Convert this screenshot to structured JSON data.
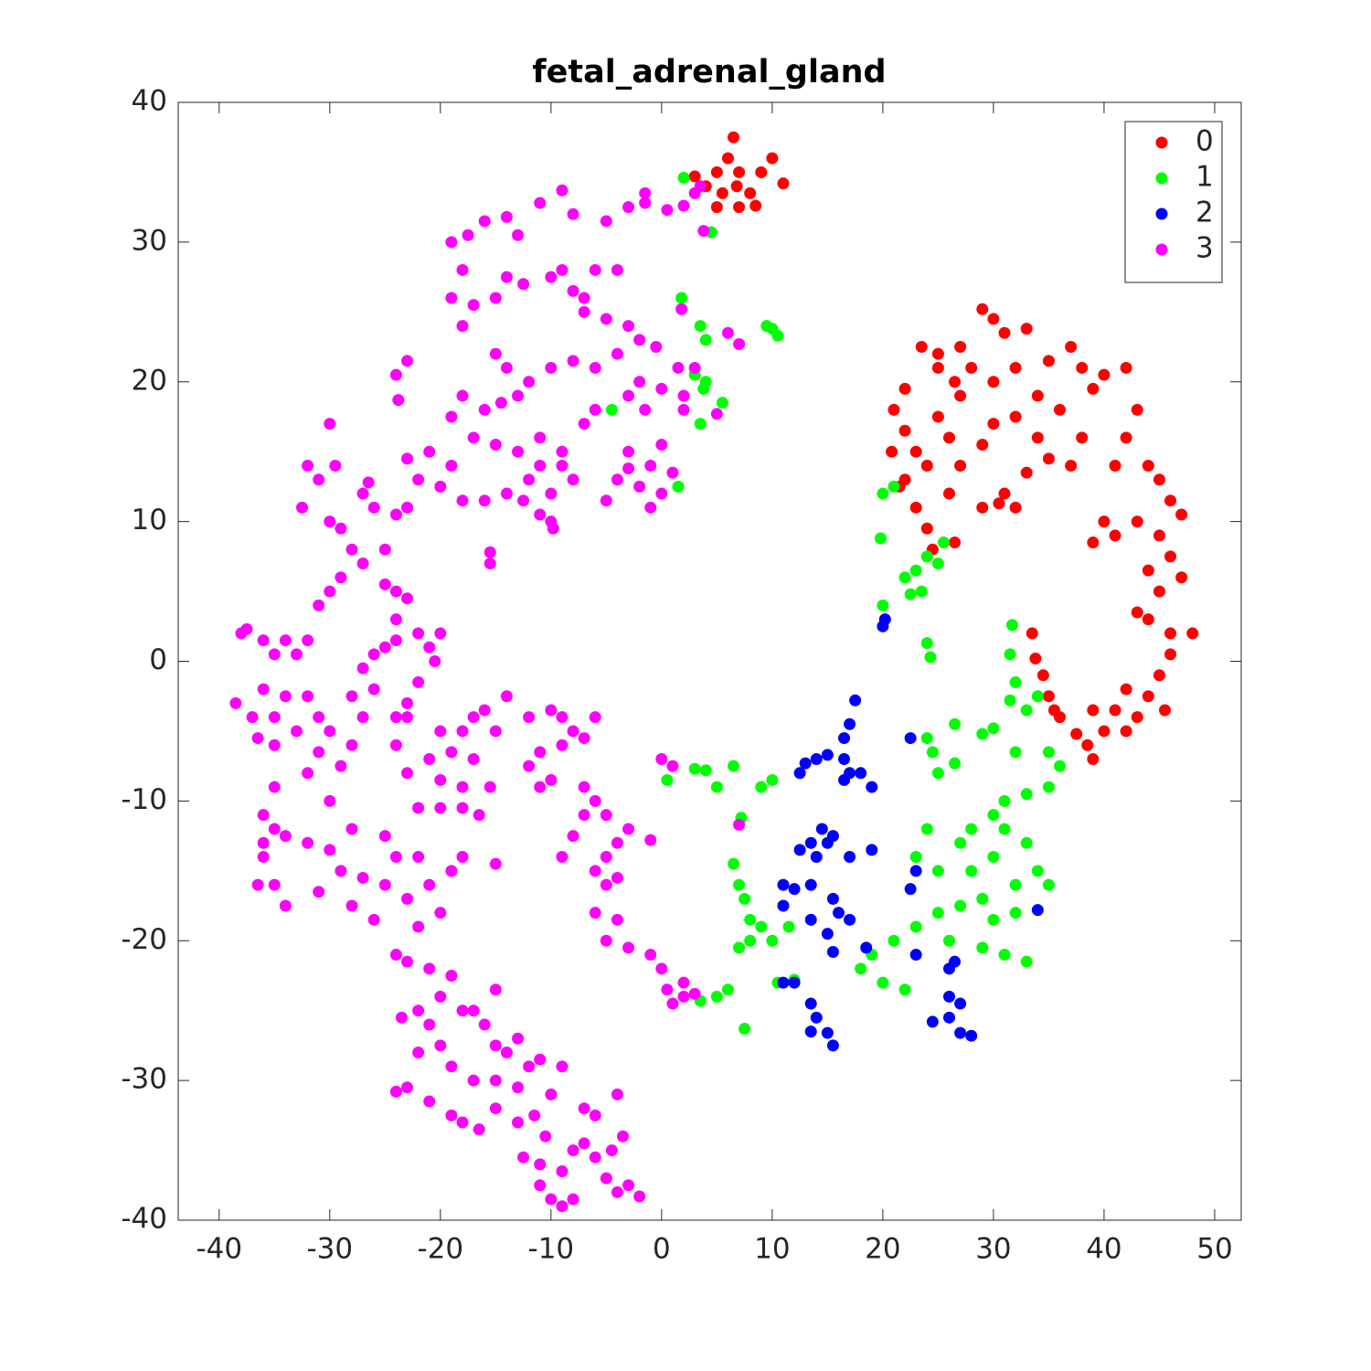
{
  "chart_data": {
    "type": "scatter",
    "title": "fetal_adrenal_gland",
    "xlim": [
      -43.7,
      52.4
    ],
    "ylim": [
      -40,
      40
    ],
    "xticks": [
      -40,
      -30,
      -20,
      -10,
      0,
      10,
      20,
      30,
      40,
      50
    ],
    "yticks": [
      -40,
      -30,
      -20,
      -10,
      0,
      10,
      20,
      30,
      40
    ],
    "legend": "upper right",
    "series": [
      {
        "name": "0",
        "color": "#ff0000",
        "x": [
          3,
          4,
          5,
          6,
          6.5,
          7,
          8,
          9,
          10,
          11,
          5,
          7,
          8.5,
          5.5,
          6.8,
          23.5,
          25,
          27,
          29,
          30,
          31,
          33,
          35,
          37,
          38,
          39,
          40,
          42,
          43,
          42,
          41,
          44,
          45,
          46,
          47,
          45,
          43,
          41,
          39,
          40,
          46,
          44,
          47,
          45,
          48,
          46,
          44,
          43,
          46,
          45,
          44,
          42,
          41,
          43,
          39,
          40,
          38.5,
          39,
          37.5,
          42,
          45.5,
          22,
          21,
          22,
          23,
          24,
          22,
          21.5,
          23,
          24,
          24.5,
          26.5,
          26,
          27,
          26,
          25,
          27,
          28,
          30,
          32,
          30,
          32,
          34,
          35,
          33,
          31,
          29,
          30.5,
          32,
          36,
          38,
          37,
          34,
          29,
          33.5,
          33.8,
          34.5,
          35,
          35.5,
          36,
          25,
          26.5,
          20.8
        ],
        "values": [
          34.7,
          34,
          35,
          36,
          37.5,
          35,
          33.5,
          35,
          36,
          34.2,
          32.5,
          32.5,
          32.6,
          33.5,
          34,
          22.5,
          22,
          22.5,
          25.2,
          24.5,
          23.5,
          23.8,
          21.5,
          22.5,
          21,
          19.5,
          20.5,
          21,
          18,
          16,
          14,
          14,
          13,
          11.5,
          10.5,
          9,
          10,
          9,
          8.5,
          10,
          7.5,
          6.5,
          6,
          5,
          2,
          2,
          3,
          3.5,
          0.5,
          -1,
          -2.5,
          -2,
          -3.5,
          -4,
          -3.5,
          -5,
          -6,
          -7,
          -5.2,
          -5,
          -3.5,
          19.5,
          18,
          16.5,
          15,
          14,
          13,
          12.5,
          11,
          9.5,
          8,
          8.5,
          12,
          14,
          16,
          17.5,
          19,
          21,
          20,
          21,
          17,
          17.5,
          16,
          14.5,
          13.5,
          12,
          11,
          11.3,
          11,
          18,
          16,
          14,
          19,
          15.5,
          2,
          0.2,
          -1,
          -2.5,
          -3.5,
          -4,
          21,
          20,
          15
        ]
      },
      {
        "name": "1",
        "color": "#00ff00",
        "x": [
          2,
          4.5,
          1.8,
          3.5,
          4,
          10,
          10.5,
          9.5,
          3,
          4,
          3.8,
          5.5,
          3.5,
          -4.5,
          1.5,
          20,
          21,
          19.8,
          22,
          23,
          24,
          25,
          25.5,
          23.5,
          22.5,
          20,
          24,
          24.3,
          31.7,
          31.5,
          32,
          33,
          34,
          31.5,
          29,
          30,
          26.5,
          24,
          24.5,
          25,
          26.5,
          32,
          35,
          36,
          35,
          33,
          31,
          30,
          28,
          27,
          24,
          23,
          25,
          28,
          30,
          31,
          33,
          34,
          35,
          32,
          29,
          27,
          25,
          23,
          21,
          19,
          18,
          20,
          22,
          26,
          29,
          31,
          33,
          30,
          32,
          0.5,
          3,
          4,
          5,
          6.5,
          9,
          10,
          6.5,
          7,
          7.5,
          8,
          9,
          10,
          8,
          11.5,
          7,
          10.5,
          12,
          5,
          6,
          3.5,
          7.5,
          7.2
        ],
        "values": [
          34.6,
          30.7,
          26,
          24,
          23,
          23.8,
          23.3,
          24,
          20.5,
          20,
          19.5,
          18.5,
          17,
          18,
          12.5,
          12,
          12.5,
          8.8,
          6,
          6.5,
          7.5,
          7,
          8.5,
          5,
          4.8,
          4,
          1.3,
          0.3,
          2.6,
          0.5,
          -1.5,
          -3.5,
          -2.5,
          -2.8,
          -5.2,
          -4.8,
          -4.5,
          -5.5,
          -6.5,
          -8,
          -7.3,
          -6.5,
          -6.5,
          -7.5,
          -9,
          -9.5,
          -10,
          -11,
          -12,
          -13,
          -12,
          -14,
          -15,
          -15,
          -14,
          -12,
          -13,
          -15,
          -16,
          -16,
          -17,
          -17.5,
          -18,
          -19,
          -20,
          -21,
          -22,
          -23,
          -23.5,
          -20,
          -20.5,
          -21,
          -21.5,
          -18.5,
          -18,
          -8.5,
          -7.7,
          -7.8,
          -9,
          -7.5,
          -9,
          -8.5,
          -14.5,
          -16,
          -17,
          -18.5,
          -19,
          -20,
          -20,
          -19,
          -20.5,
          -23,
          -22.8,
          -24,
          -23.5,
          -24.3,
          -26.3,
          -11.2
        ]
      },
      {
        "name": "2",
        "color": "#0000ff",
        "x": [
          20,
          20.2,
          17.5,
          17,
          16.5,
          15,
          14,
          13,
          12.5,
          16.5,
          17,
          16.5,
          18,
          19,
          22.5,
          14.5,
          15.5,
          13.5,
          12.5,
          14,
          15,
          17,
          19,
          23,
          22.5,
          11,
          12,
          13.5,
          11,
          15.5,
          16,
          17,
          13.5,
          15,
          15.5,
          18.5,
          23,
          26.5,
          26,
          11,
          12,
          13.5,
          14,
          13.5,
          15,
          15.5,
          24.5,
          26,
          27,
          28,
          26,
          27,
          34
        ],
        "values": [
          2.5,
          3,
          -2.8,
          -4.5,
          -5.5,
          -6.7,
          -7,
          -7.3,
          -8,
          -7,
          -8,
          -8.5,
          -8,
          -9,
          -5.5,
          -12,
          -12.5,
          -13,
          -13.5,
          -14,
          -13,
          -14,
          -13.5,
          -15,
          -16.3,
          -16,
          -16.3,
          -16,
          -17.5,
          -17,
          -18,
          -18.5,
          -18.5,
          -19.5,
          -20.8,
          -20.5,
          -21,
          -21.5,
          -22,
          -23,
          -23,
          -24.5,
          -25.5,
          -26.5,
          -26.6,
          -27.5,
          -25.8,
          -25.5,
          -26.6,
          -26.8,
          -24,
          -24.5,
          -17.8
        ]
      },
      {
        "name": "3",
        "color": "#ff00ff",
        "x": [
          -9,
          -11,
          -8,
          -5,
          -3,
          -1.5,
          -1.5,
          0.5,
          2,
          3,
          3.5,
          3.8,
          -14,
          -16,
          -13,
          -17.5,
          -19,
          -18,
          -19,
          -18,
          -17,
          -15,
          -14,
          -12.5,
          -10,
          -9,
          -8,
          -7,
          -6,
          -4,
          -7,
          -5,
          -3,
          -2,
          -4,
          -6,
          -8,
          -10,
          -12,
          -14,
          -15,
          -13,
          -14.5,
          -16,
          -18,
          -19,
          -17,
          -15,
          -13,
          -11,
          -9,
          -8,
          -10,
          -12,
          -14,
          -16,
          -18,
          -20,
          -22,
          -23,
          -21,
          -19,
          -24,
          -23,
          -23.8,
          -30,
          -32,
          -31,
          -29.5,
          -32.5,
          -30,
          -29,
          -26,
          -27,
          -26.5,
          -25,
          -27,
          -28,
          -29,
          -30,
          -31,
          -24,
          -23,
          -15.5,
          -15.5,
          -1,
          0,
          -2,
          -3,
          -4,
          -5,
          -3,
          -1,
          1,
          0,
          -1.5,
          0,
          1.5,
          2,
          2,
          3,
          6,
          7,
          1.8,
          -3,
          -2,
          -0.5,
          -10,
          -9.8,
          -11,
          -12.5,
          -7,
          -6,
          5,
          -9,
          -11,
          -38.5,
          -38,
          -37.5,
          -36,
          -35,
          -34,
          -33,
          -32,
          -36,
          -35,
          -37,
          -36.5,
          -35,
          -33,
          -34,
          -32,
          -31,
          -30,
          -31,
          -32,
          -29,
          -28,
          -27,
          -26,
          -28,
          -27,
          -25,
          -24,
          -22,
          -21,
          -20,
          -20.5,
          -22,
          -23,
          -24,
          -24,
          -23,
          -21,
          -20,
          -19,
          -18,
          -17,
          -16,
          -14,
          -15,
          -17,
          -18,
          -20,
          -15.5,
          -20,
          -18,
          -16.5,
          -22,
          -23,
          -24,
          -24,
          -23,
          -25,
          -26,
          -12,
          -10,
          -9,
          -8,
          -7,
          -6,
          -9,
          -11,
          -12,
          -10,
          -11,
          -7,
          -6,
          -5,
          -4,
          -5,
          -6,
          -4,
          -5,
          -8,
          -7,
          -9,
          -3,
          -1,
          -4,
          -6,
          -5,
          -3,
          0,
          1,
          -15,
          -35,
          -36,
          -35,
          -36,
          -36.5,
          -35,
          -34,
          -36,
          -34,
          -32,
          -30,
          -29,
          -27,
          -25,
          -24,
          -25,
          -28,
          -30,
          -31,
          -28,
          -26,
          -23,
          -22,
          -21,
          -20,
          -19,
          -18,
          -22,
          -21,
          -20,
          -19,
          -24,
          -23,
          -21,
          -22,
          -23.5,
          -20,
          -18,
          -17,
          -16,
          -15,
          -14,
          -13,
          -12,
          -11,
          -13,
          -15,
          -17,
          -19,
          -22,
          -23,
          -24,
          -21,
          -19,
          -16.5,
          -18,
          -15,
          -13,
          -11.5,
          -10,
          -9,
          -10.5,
          -11,
          -11,
          -10,
          -9,
          -8,
          -9,
          -8,
          -7,
          -6,
          -5,
          -4,
          -3,
          -2,
          -4.5,
          -3.5,
          -4,
          -6,
          -7,
          -12.5,
          -15,
          -1,
          0,
          0.5,
          1,
          2,
          3,
          2,
          7
        ],
        "values": [
          33.7,
          32.8,
          32,
          31.5,
          32.5,
          33.5,
          32.8,
          32.3,
          32.6,
          33.5,
          34,
          30.8,
          31.8,
          31.5,
          30.5,
          30.5,
          30,
          28,
          26,
          24,
          25.5,
          26,
          27.5,
          27,
          27.5,
          28,
          26.5,
          26,
          28,
          28,
          25,
          24.5,
          24,
          23,
          22,
          21,
          21.5,
          21,
          20,
          21,
          22,
          19,
          18.5,
          18,
          19,
          17.5,
          16,
          15.5,
          15,
          16,
          15,
          13,
          12,
          13,
          12,
          11.5,
          11.5,
          12.5,
          13,
          14.5,
          15,
          14,
          20.5,
          21.5,
          18.7,
          17,
          14,
          13,
          14,
          11,
          10,
          9.5,
          11,
          12,
          12.8,
          8,
          7,
          8,
          6,
          5,
          4,
          10.5,
          11,
          7,
          7.8,
          11,
          12,
          12.5,
          13.8,
          13,
          11.5,
          15,
          14,
          13.5,
          15.5,
          18,
          19.5,
          21,
          19,
          18,
          21,
          23.5,
          22.7,
          25.2,
          19,
          20,
          22.5,
          10,
          9.5,
          10.5,
          11.5,
          17,
          18,
          17.7,
          14,
          14,
          -3,
          2,
          2.3,
          1.5,
          0.5,
          1.5,
          0.5,
          1.5,
          -2,
          -4,
          -4,
          -5.5,
          -6,
          -5,
          -2.5,
          -2.5,
          -4,
          -5,
          -6.5,
          -8,
          -7.5,
          -6,
          -4,
          -2,
          -2.5,
          -0.5,
          1,
          1.5,
          2,
          1,
          2,
          0,
          -1.5,
          -3,
          -4,
          -6,
          -8,
          -7,
          -5,
          -6.5,
          -5,
          -4,
          -3.5,
          -2.5,
          -5,
          -7,
          -9,
          -8.5,
          -9,
          -10.5,
          -10.5,
          -11,
          -10.5,
          -4,
          3,
          5,
          4.5,
          5.5,
          0.5,
          -4,
          -3.5,
          -4,
          -5,
          -5.5,
          -4,
          -6,
          -6.5,
          -7.5,
          -8.5,
          -9,
          -9,
          -10,
          -11,
          -13,
          -14,
          -15,
          -15.5,
          -16,
          -12.5,
          -11,
          -14,
          -12,
          -12.8,
          -18.5,
          -18,
          -20,
          -20.5,
          -7,
          -7.5,
          -14.5,
          -9,
          -11,
          -12,
          -14,
          -16,
          -16,
          -17.5,
          -13,
          -12.5,
          -13,
          -13.5,
          -15,
          -15.5,
          -16,
          -14,
          -12.5,
          -12,
          -10,
          -16.5,
          -17.5,
          -18.5,
          -17,
          -19,
          -16,
          -18,
          -15,
          -14,
          -14,
          -22,
          -24,
          -22.5,
          -21,
          -21.5,
          -26,
          -25,
          -25.5,
          -27.5,
          -25,
          -25,
          -26,
          -27.5,
          -28,
          -27,
          -29,
          -28.5,
          -30.5,
          -30,
          -30,
          -29,
          -28,
          -30.5,
          -30.8,
          -31.5,
          -32.5,
          -33.5,
          -33,
          -32,
          -33,
          -32.5,
          -31,
          -29,
          -34,
          -36,
          -37.5,
          -38.5,
          -39,
          -38.5,
          -36.5,
          -35,
          -34.5,
          -35.5,
          -37,
          -38,
          -37.5,
          -38.3,
          -35,
          -34,
          -31,
          -32.5,
          -32,
          -35.5,
          -23.5,
          -21,
          -22,
          -23.5,
          -24.5,
          -24,
          -23.8,
          -23,
          -11.7
        ]
      }
    ]
  }
}
